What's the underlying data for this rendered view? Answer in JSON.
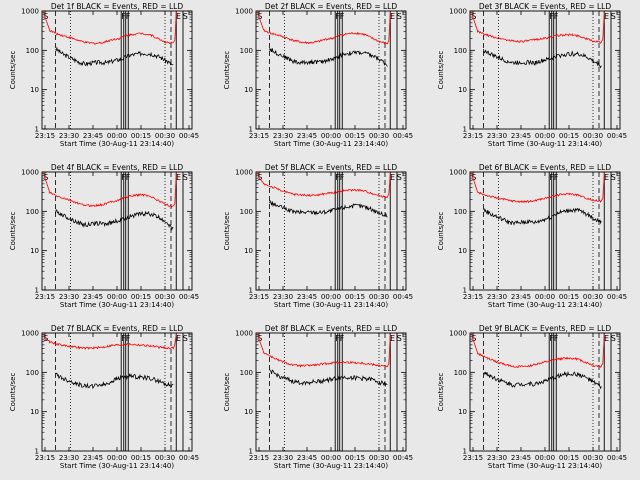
{
  "chart_data": [
    {
      "type": "line",
      "title": "Det 1f BLACK = Events, RED = LLD",
      "xlabel": "Start Time (30-Aug-11 23:14:40)",
      "ylabel": "Counts/sec",
      "yscale": "log",
      "ylim": [
        1,
        1000
      ],
      "x_ticks": [
        "23:15",
        "23:30",
        "23:45",
        "00:00",
        "00:15",
        "00:30",
        "00:45"
      ],
      "y_ticks": [
        "1",
        "10",
        "100",
        "1000"
      ],
      "markers": [
        "S",
        "F",
        "F",
        "E",
        "S"
      ],
      "series": [
        {
          "color": "#000000",
          "values": [
            110,
            80,
            65,
            52,
            45,
            48,
            50,
            48,
            55,
            60,
            75,
            80,
            85,
            82,
            70,
            55,
            40
          ]
        },
        {
          "color": "#ff0000",
          "values": [
            320,
            260,
            230,
            200,
            170,
            155,
            150,
            160,
            185,
            200,
            240,
            260,
            270,
            250,
            200,
            160,
            150
          ]
        }
      ]
    },
    {
      "type": "line",
      "title": "Det 2f BLACK = Events, RED = LLD",
      "xlabel": "Start Time (30-Aug-11 23:14:40)",
      "ylabel": "Counts/sec",
      "yscale": "log",
      "ylim": [
        1,
        1000
      ],
      "x_ticks": [
        "23:15",
        "23:30",
        "23:45",
        "00:00",
        "00:15",
        "00:30",
        "00:45"
      ],
      "y_ticks": [
        "1",
        "10",
        "100",
        "1000"
      ],
      "markers": [
        "S",
        "F",
        "F",
        "E",
        "S"
      ],
      "series": [
        {
          "color": "#000000",
          "values": [
            110,
            85,
            70,
            55,
            48,
            50,
            52,
            50,
            58,
            62,
            80,
            85,
            88,
            84,
            72,
            58,
            42
          ]
        },
        {
          "color": "#ff0000",
          "values": [
            320,
            270,
            240,
            205,
            175,
            160,
            155,
            165,
            190,
            205,
            245,
            265,
            275,
            255,
            205,
            165,
            150
          ]
        }
      ]
    },
    {
      "type": "line",
      "title": "Det 3f BLACK = Events, RED = LLD",
      "xlabel": "Start Time (30-Aug-11 23:14:40)",
      "ylabel": "Counts/sec",
      "yscale": "log",
      "ylim": [
        1,
        1000
      ],
      "x_ticks": [
        "23:15",
        "23:30",
        "23:45",
        "00:00",
        "00:15",
        "00:30",
        "00:45"
      ],
      "y_ticks": [
        "1",
        "10",
        "100",
        "1000"
      ],
      "markers": [
        "S",
        "F",
        "F",
        "E",
        "S"
      ],
      "series": [
        {
          "color": "#000000",
          "values": [
            100,
            80,
            65,
            55,
            48,
            50,
            50,
            48,
            55,
            60,
            72,
            78,
            82,
            80,
            68,
            52,
            40
          ]
        },
        {
          "color": "#ff0000",
          "values": [
            300,
            250,
            220,
            200,
            180,
            170,
            170,
            180,
            195,
            205,
            230,
            245,
            250,
            235,
            200,
            170,
            160
          ]
        }
      ]
    },
    {
      "type": "line",
      "title": "Det 4f BLACK = Events, RED = LLD",
      "xlabel": "Start Time (30-Aug-11 23:14:40)",
      "ylabel": "Counts/sec",
      "yscale": "log",
      "ylim": [
        1,
        1000
      ],
      "x_ticks": [
        "23:15",
        "23:30",
        "23:45",
        "00:00",
        "00:15",
        "00:30",
        "00:45"
      ],
      "y_ticks": [
        "1",
        "10",
        "100",
        "1000"
      ],
      "markers": [
        "S",
        "F",
        "F",
        "E",
        "S"
      ],
      "series": [
        {
          "color": "#000000",
          "values": [
            100,
            80,
            65,
            52,
            45,
            48,
            50,
            48,
            55,
            60,
            75,
            82,
            88,
            85,
            70,
            55,
            35
          ]
        },
        {
          "color": "#ff0000",
          "values": [
            300,
            240,
            210,
            180,
            150,
            140,
            140,
            150,
            175,
            195,
            235,
            255,
            265,
            245,
            190,
            150,
            130
          ]
        }
      ]
    },
    {
      "type": "line",
      "title": "Det 5f BLACK = Events, RED = LLD",
      "xlabel": "Start Time (30-Aug-11 23:14:40)",
      "ylabel": "Counts/sec",
      "yscale": "log",
      "ylim": [
        1,
        1000
      ],
      "x_ticks": [
        "23:15",
        "23:30",
        "23:45",
        "00:00",
        "00:15",
        "00:30",
        "00:45"
      ],
      "y_ticks": [
        "1",
        "10",
        "100",
        "1000"
      ],
      "markers": [
        "S",
        "F",
        "F",
        "E",
        "S"
      ],
      "series": [
        {
          "color": "#000000",
          "values": [
            170,
            140,
            120,
            100,
            95,
            95,
            95,
            95,
            100,
            110,
            125,
            135,
            140,
            130,
            110,
            90,
            75
          ]
        },
        {
          "color": "#ff0000",
          "values": [
            500,
            420,
            360,
            300,
            270,
            260,
            255,
            260,
            280,
            300,
            330,
            345,
            350,
            330,
            290,
            250,
            230
          ]
        }
      ]
    },
    {
      "type": "line",
      "title": "Det 6f BLACK = Events, RED = LLD",
      "xlabel": "Start Time (30-Aug-11 23:14:40)",
      "ylabel": "Counts/sec",
      "yscale": "log",
      "ylim": [
        1,
        1000
      ],
      "x_ticks": [
        "23:15",
        "23:30",
        "23:45",
        "00:00",
        "00:15",
        "00:30",
        "00:45"
      ],
      "y_ticks": [
        "1",
        "10",
        "100",
        "1000"
      ],
      "markers": [
        "S",
        "F",
        "F",
        "E",
        "S"
      ],
      "series": [
        {
          "color": "#000000",
          "values": [
            110,
            85,
            70,
            58,
            50,
            52,
            55,
            52,
            60,
            70,
            90,
            100,
            110,
            105,
            85,
            65,
            55
          ]
        },
        {
          "color": "#ff0000",
          "values": [
            300,
            260,
            230,
            210,
            190,
            180,
            175,
            180,
            200,
            220,
            250,
            270,
            280,
            260,
            220,
            190,
            180
          ]
        }
      ]
    },
    {
      "type": "line",
      "title": "Det 7f BLACK = Events, RED = LLD",
      "xlabel": "Start Time (30-Aug-11 23:14:40)",
      "ylabel": "Counts/sec",
      "yscale": "log",
      "ylim": [
        1,
        1000
      ],
      "x_ticks": [
        "23:15",
        "23:30",
        "23:45",
        "00:00",
        "00:15",
        "00:30",
        "00:45"
      ],
      "y_ticks": [
        "1",
        "10",
        "100",
        "1000"
      ],
      "markers": [
        "S",
        "F",
        "F",
        "E",
        "S"
      ],
      "series": [
        {
          "color": "#000000",
          "values": [
            90,
            70,
            60,
            50,
            45,
            45,
            48,
            50,
            65,
            75,
            80,
            78,
            75,
            70,
            60,
            50,
            45
          ]
        },
        {
          "color": "#ff0000",
          "values": [
            600,
            520,
            480,
            450,
            420,
            410,
            420,
            440,
            480,
            500,
            520,
            510,
            490,
            470,
            440,
            420,
            420
          ]
        }
      ]
    },
    {
      "type": "line",
      "title": "Det 8f BLACK = Events, RED = LLD",
      "xlabel": "Start Time (30-Aug-11 23:14:40)",
      "ylabel": "Counts/sec",
      "yscale": "log",
      "ylim": [
        1,
        1000
      ],
      "x_ticks": [
        "23:15",
        "23:30",
        "23:45",
        "00:00",
        "00:15",
        "00:30",
        "00:45"
      ],
      "y_ticks": [
        "1",
        "10",
        "100",
        "1000"
      ],
      "markers": [
        "S",
        "F",
        "F",
        "E",
        "S"
      ],
      "series": [
        {
          "color": "#000000",
          "values": [
            110,
            85,
            70,
            60,
            55,
            55,
            58,
            60,
            65,
            70,
            75,
            75,
            72,
            70,
            65,
            55,
            50
          ]
        },
        {
          "color": "#ff0000",
          "values": [
            320,
            250,
            200,
            170,
            150,
            145,
            150,
            155,
            165,
            175,
            180,
            180,
            175,
            170,
            160,
            150,
            140
          ]
        }
      ]
    },
    {
      "type": "line",
      "title": "Det 9f BLACK = Events, RED = LLD",
      "xlabel": "Start Time (30-Aug-11 23:14:40)",
      "ylabel": "Counts/sec",
      "yscale": "log",
      "ylim": [
        1,
        1000
      ],
      "x_ticks": [
        "23:15",
        "23:30",
        "23:45",
        "00:00",
        "00:15",
        "00:30",
        "00:45"
      ],
      "y_ticks": [
        "1",
        "10",
        "100",
        "1000"
      ],
      "markers": [
        "S",
        "F",
        "F",
        "E",
        "S"
      ],
      "series": [
        {
          "color": "#000000",
          "values": [
            100,
            80,
            65,
            55,
            48,
            50,
            52,
            50,
            58,
            65,
            80,
            88,
            92,
            88,
            72,
            55,
            42
          ]
        },
        {
          "color": "#ff0000",
          "values": [
            300,
            240,
            200,
            170,
            150,
            140,
            140,
            150,
            170,
            185,
            210,
            225,
            230,
            215,
            180,
            150,
            140
          ]
        }
      ]
    }
  ]
}
